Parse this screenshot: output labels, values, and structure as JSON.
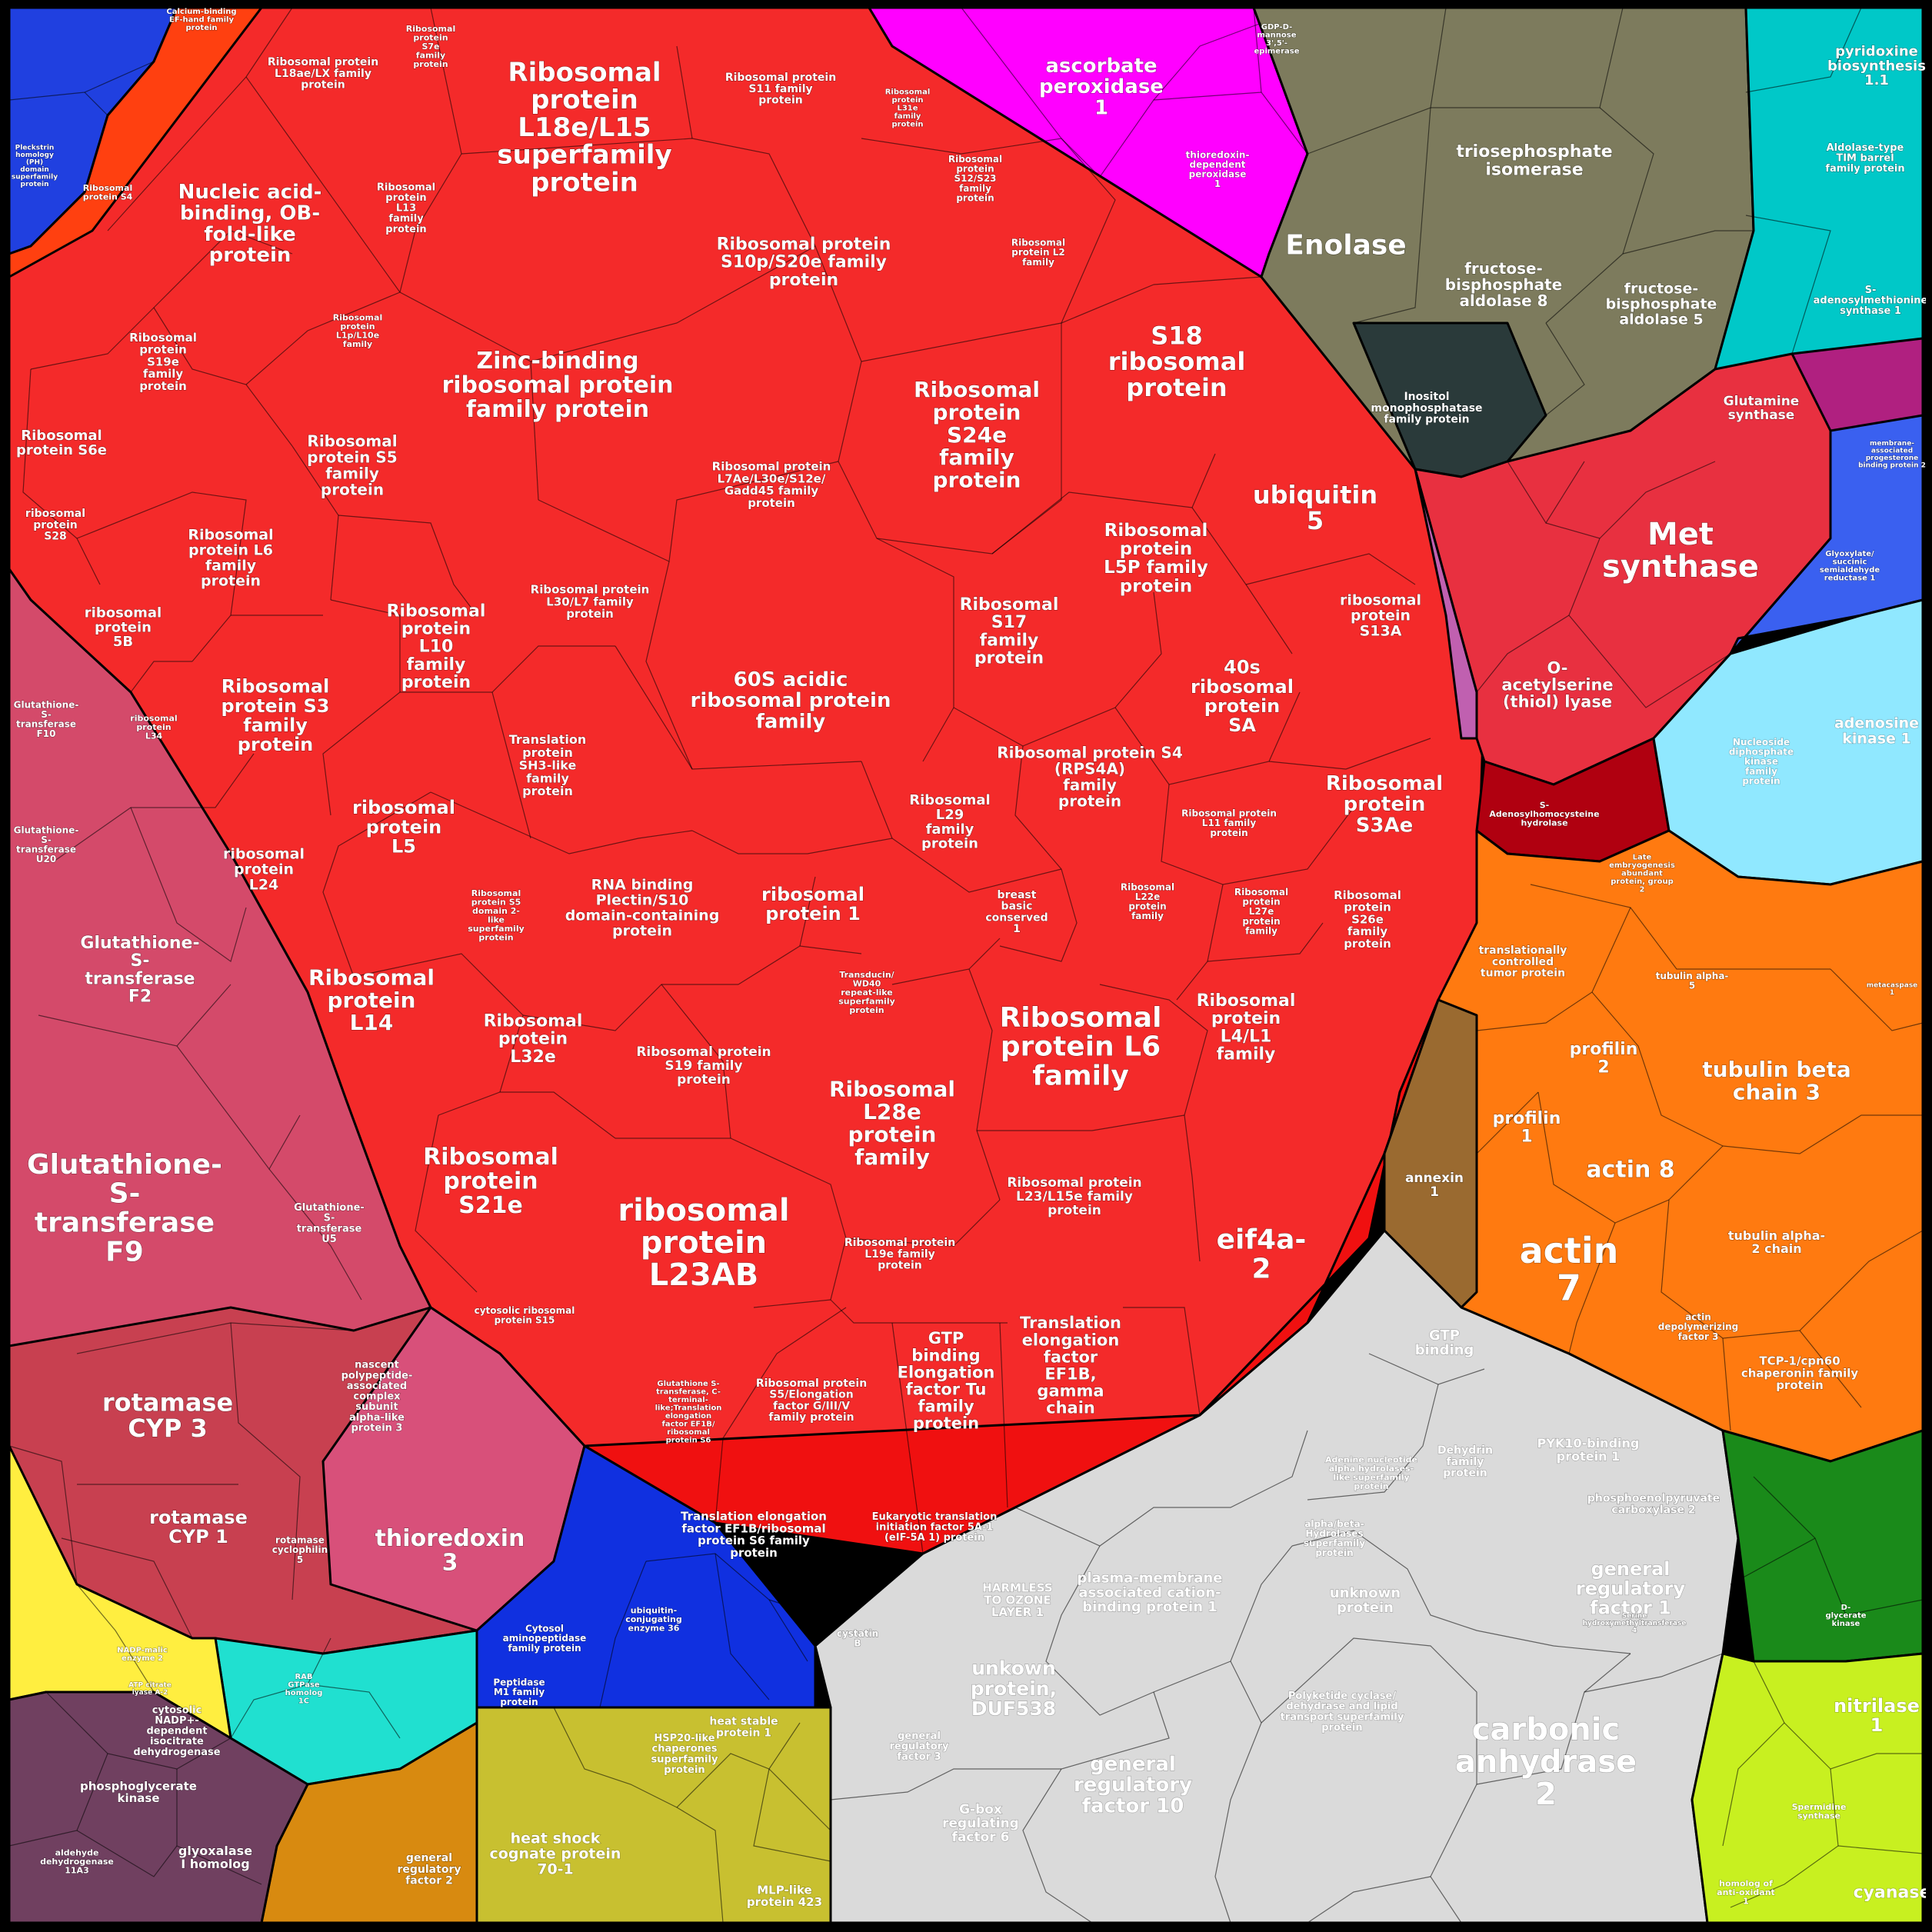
{
  "palette": {
    "ribosome": "#f42a2a",
    "ribosome_dark": "#e81a1a",
    "translation": "#f01010",
    "gst": "#d44a6a",
    "gst_light": "#e0607a",
    "magenta": "#ff00ff",
    "olive": "#7d7b5d",
    "teal": "#00c8c8",
    "met": "#e83040",
    "maroon": "#b00010",
    "orange": "#ff7a10",
    "grey": "#dadada",
    "blue": "#1030e0",
    "khaki": "#c8c030",
    "green": "#1a8a1a",
    "lime": "#c8f020",
    "purple": "#704060",
    "slate": "#2a3a3a",
    "brown": "#9a6a30"
  },
  "regions": [
    {
      "id": "r01",
      "label": "Ribosomal\nprotein\nL18e/L15\nsuperfamily\nprotein",
      "size": 34
    },
    {
      "id": "r02",
      "label": "Nucleic acid-\nbinding, OB-\nfold-like\nprotein",
      "size": 26
    },
    {
      "id": "r03",
      "label": "Ribosomal protein\nL18ae/LX family\nprotein",
      "size": 14
    },
    {
      "id": "r04",
      "label": "Ribosomal\nprotein\nS7e\nfamily\nprotein",
      "size": 11
    },
    {
      "id": "r05",
      "label": "Ribosomal protein\nS11 family\nprotein",
      "size": 14
    },
    {
      "id": "r06",
      "label": "Ribosomal protein\nS10p/S20e family\nprotein",
      "size": 22
    },
    {
      "id": "r07",
      "label": "Zinc-binding\nribosomal protein\nfamily protein",
      "size": 30
    },
    {
      "id": "r08",
      "label": "Ribosomal\nprotein\nS24e\nfamily\nprotein",
      "size": 28
    },
    {
      "id": "r09",
      "label": "S18\nribosomal\nprotein",
      "size": 32
    },
    {
      "id": "r10",
      "label": "ubiquitin\n5",
      "size": 32
    },
    {
      "id": "r11",
      "label": "Ribosomal\nprotein S6e",
      "size": 18
    },
    {
      "id": "r12",
      "label": "Ribosomal\nprotein S5\nfamily\nprotein",
      "size": 20
    },
    {
      "id": "r13",
      "label": "Ribosomal\nprotein L6\nfamily\nprotein",
      "size": 19
    },
    {
      "id": "r14",
      "label": "Ribosomal\nprotein\nL10\nfamily\nprotein",
      "size": 22
    },
    {
      "id": "r15",
      "label": "Ribosomal\nprotein S3\nfamily\nprotein",
      "size": 24
    },
    {
      "id": "r16",
      "label": "60S acidic\nribosomal protein\nfamily",
      "size": 26
    },
    {
      "id": "r17",
      "label": "Ribosomal\nprotein\nL5P family\nprotein",
      "size": 23
    },
    {
      "id": "r18",
      "label": "Ribosomal\nS17\nfamily\nprotein",
      "size": 22
    },
    {
      "id": "r19",
      "label": "40s\nribosomal\nprotein\nSA",
      "size": 24
    },
    {
      "id": "r20",
      "label": "ribosomal\nprotein\nS13A",
      "size": 19
    },
    {
      "id": "r21",
      "label": "Ribosomal\nprotein\nS3Ae",
      "size": 26
    },
    {
      "id": "r22",
      "label": "ribosomal\nprotein\nL5",
      "size": 24
    },
    {
      "id": "r23",
      "label": "Ribosomal protein S4\n(RPS4A)\nfamily\nprotein",
      "size": 20
    },
    {
      "id": "r24",
      "label": "ribosomal\nprotein 1",
      "size": 24
    },
    {
      "id": "r25",
      "label": "RNA binding\nPlectin/S10\ndomain-containing\nprotein",
      "size": 19
    },
    {
      "id": "r26",
      "label": "Ribosomal\nprotein\nL14",
      "size": 28
    },
    {
      "id": "r27",
      "label": "Ribosomal\nprotein L6\nfamily",
      "size": 36
    },
    {
      "id": "r28",
      "label": "Ribosomal\nprotein\nL4/L1\nfamily",
      "size": 22
    },
    {
      "id": "r29",
      "label": "Ribosomal\nprotein\nS21e",
      "size": 30
    },
    {
      "id": "r30",
      "label": "ribosomal\nprotein\nL23AB",
      "size": 40
    },
    {
      "id": "r31",
      "label": "Ribosomal\nL28e\nprotein\nfamily",
      "size": 28
    },
    {
      "id": "r32",
      "label": "eif4a-\n2",
      "size": 36
    },
    {
      "id": "r33",
      "label": "Translation\nelongation\nfactor\nEF1B,\ngamma\nchain",
      "size": 21
    },
    {
      "id": "r34",
      "label": "GTP\nbinding\nElongation\nfactor Tu\nfamily\nprotein",
      "size": 21
    },
    {
      "id": "r35",
      "label": "Glutathione-\nS-\ntransferase\nF9",
      "size": 36
    },
    {
      "id": "r36",
      "label": "Glutathione-\nS-\ntransferase\nF2",
      "size": 22
    },
    {
      "id": "r37",
      "label": "rotamase\nCYP 3",
      "size": 32
    },
    {
      "id": "r38",
      "label": "rotamase\nCYP 1",
      "size": 24
    },
    {
      "id": "r39",
      "label": "thioredoxin\n3",
      "size": 30
    },
    {
      "id": "r40",
      "label": "ascorbate\nperoxidase\n1",
      "size": 26
    },
    {
      "id": "r41",
      "label": "Enolase",
      "size": 36
    },
    {
      "id": "r42",
      "label": "triosephosphate\nisomerase",
      "size": 22
    },
    {
      "id": "r43",
      "label": "fructose-\nbisphosphate\naldolase 8",
      "size": 20
    },
    {
      "id": "r44",
      "label": "fructose-\nbisphosphate\naldolase 5",
      "size": 19
    },
    {
      "id": "r45",
      "label": "Met\nsynthase",
      "size": 40
    },
    {
      "id": "r46",
      "label": "O-\nacetylserine\n(thiol) lyase",
      "size": 21
    },
    {
      "id": "r47",
      "label": "actin\n7",
      "size": 46
    },
    {
      "id": "r48",
      "label": "actin 8",
      "size": 30
    },
    {
      "id": "r49",
      "label": "tubulin beta\nchain 3",
      "size": 28
    },
    {
      "id": "r50",
      "label": "profilin\n2",
      "size": 22
    },
    {
      "id": "r51",
      "label": "profilin\n1",
      "size": 22
    },
    {
      "id": "r52",
      "label": "carbonic\nanhydrase\n2",
      "size": 40
    },
    {
      "id": "r53",
      "label": "general\nregulatory\nfactor 10",
      "size": 26
    },
    {
      "id": "r54",
      "label": "general\nregulatory\nfactor 1",
      "size": 24
    },
    {
      "id": "r55",
      "label": "unkown\nprotein,\nDUF538",
      "size": 25
    },
    {
      "id": "r56",
      "label": "plasma-membrane\nassociated cation-\nbinding protein 1",
      "size": 18
    },
    {
      "id": "r57",
      "label": "heat shock\ncognate protein\n70-1",
      "size": 19
    },
    {
      "id": "r58",
      "label": "nitrilase\n1",
      "size": 24
    },
    {
      "id": "r59",
      "label": "adenosine\nkinase 1",
      "size": 19
    },
    {
      "id": "r60",
      "label": "pyridoxine\nbiosynthesis\n1.1",
      "size": 18
    },
    {
      "id": "r61",
      "label": "Glutamine\nsynthase",
      "size": 17
    },
    {
      "id": "r62",
      "label": "phosphoenolpyruvate\ncarboxylase 2",
      "size": 14
    },
    {
      "id": "r63",
      "label": "cyanase",
      "size": 22
    },
    {
      "id": "r64",
      "label": "phosphoglycerate\nkinase",
      "size": 15
    },
    {
      "id": "r65",
      "label": "glyoxalase\nI homolog",
      "size": 16
    },
    {
      "id": "r66",
      "label": "annexin\n1",
      "size": 17
    },
    {
      "id": "r67",
      "label": "S-\nadenosylmethionine\nsynthase 1",
      "size": 13
    },
    {
      "id": "r68",
      "label": "Inositol\nmonophosphatase\nfamily protein",
      "size": 14
    },
    {
      "id": "r69",
      "label": "Translation elongation\nfactor EF1B/ribosomal\nprotein S6 family\nprotein",
      "size": 15
    },
    {
      "id": "r70",
      "label": "Ribosomal protein\nS19 family\nprotein",
      "size": 17
    },
    {
      "id": "r71",
      "label": "Ribosomal protein\nL23/L15e family\nprotein",
      "size": 17
    },
    {
      "id": "r72",
      "label": "Ribosomal\nprotein\nL32e",
      "size": 22
    },
    {
      "id": "r73",
      "label": "ribosomal\nprotein\nL24",
      "size": 19
    },
    {
      "id": "r74",
      "label": "ribosomal\nprotein\n5B",
      "size": 18
    },
    {
      "id": "r75",
      "label": "Ribosomal\nprotein\nS19e\nfamily\nprotein",
      "size": 15
    },
    {
      "id": "r76",
      "label": "Translation\nprotein\nSH3-like\nfamily\nprotein",
      "size": 16
    },
    {
      "id": "r77",
      "label": "Ribosomal protein\nL7Ae/L30e/S12e/\nGadd45 family\nprotein",
      "size": 15
    },
    {
      "id": "r78",
      "label": "Ribosomal protein\nL30/L7 family\nprotein",
      "size": 15
    },
    {
      "id": "r79",
      "label": "Ribosomal\nL29\nfamily\nprotein",
      "size": 18
    },
    {
      "id": "r80",
      "label": "general\nregulatory\nfactor 2",
      "size": 14
    },
    {
      "id": "r81",
      "label": "HARMLESS\nTO OZONE\nLAYER 1",
      "size": 15
    },
    {
      "id": "r82",
      "label": "G-box\nregulating\nfactor 6",
      "size": 17
    },
    {
      "id": "r83",
      "label": "GTP\nbinding",
      "size": 18
    },
    {
      "id": "r84",
      "label": "unknown\nprotein",
      "size": 18
    },
    {
      "id": "r85",
      "label": "tubulin alpha-\n2 chain",
      "size": 16
    },
    {
      "id": "r86",
      "label": "Ribosomal protein\nL19e family\nprotein",
      "size": 14
    },
    {
      "id": "r87",
      "label": "cytosolic\nNADP+-\ndependent\nisocitrate\ndehydrogenase",
      "size": 13
    },
    {
      "id": "r88",
      "label": "heat stable\nprotein 1",
      "size": 14
    },
    {
      "id": "r89",
      "label": "MLP-like\nprotein 423",
      "size": 15
    },
    {
      "id": "r90",
      "label": "TCP-1/cpn60\nchaperonin family\nprotein",
      "size": 15
    },
    {
      "id": "r91",
      "label": "cytosolic ribosomal\nprotein S15",
      "size": 12
    },
    {
      "id": "r92",
      "label": "Ribosomal\nprotein\nL13\nfamily\nprotein",
      "size": 13
    },
    {
      "id": "r93",
      "label": "Cytosol\naminopeptidase\nfamily protein",
      "size": 12
    },
    {
      "id": "r94",
      "label": "Peptidase\nM1 family\nprotein",
      "size": 12
    },
    {
      "id": "r95",
      "label": "breast\nbasic\nconserved\n1",
      "size": 14
    },
    {
      "id": "r96",
      "label": "Transducin/\nWD40\nrepeat-like\nsuperfamily\nprotein",
      "size": 11
    },
    {
      "id": "r97",
      "label": "Glutathione-\nS-\ntransferase\nU5",
      "size": 13
    },
    {
      "id": "r98",
      "label": "nascent\npolypeptide-\nassociated\ncomplex\nsubunit\nalpha-like\nprotein 3",
      "size": 13
    },
    {
      "id": "r99",
      "label": "S-\nAdenosylhomocysteine\nhydrolase",
      "size": 11
    },
    {
      "id": "r100",
      "label": "translationally\ncontrolled\ntumor protein",
      "size": 14
    },
    {
      "id": "r101",
      "label": "Eukaryotic translation\ninitiation factor 5A-1\n(eIF-5A 1) protein",
      "size": 13
    },
    {
      "id": "r102",
      "label": "Ribosomal protein\nS5/Elongation\nfactor G/III/V\nfamily protein",
      "size": 14
    },
    {
      "id": "r103",
      "label": "Polyketide cyclase/\ndehydrase and lipid\ntransport superfamily\nprotein",
      "size": 13
    },
    {
      "id": "r104",
      "label": "PYK10-binding\nprotein 1",
      "size": 16
    },
    {
      "id": "r105",
      "label": "Dehydrin\nfamily\nprotein",
      "size": 14
    },
    {
      "id": "r106",
      "label": "actin\ndepolymerizing\nfactor 3",
      "size": 12
    },
    {
      "id": "r107",
      "label": "ribosomal\nprotein\nS28",
      "size": 14
    },
    {
      "id": "r108",
      "label": "Glutathione-\nS-\ntransferase\nF10",
      "size": 12
    },
    {
      "id": "r109",
      "label": "Glutathione-\nS-\ntransferase\nU20",
      "size": 12
    },
    {
      "id": "r110",
      "label": "rotamase\ncyclophilin\n5",
      "size": 12
    },
    {
      "id": "r111",
      "label": "general\nregulatory\nfactor 3",
      "size": 13
    },
    {
      "id": "r112",
      "label": "thioredoxin-\ndependent\nperoxidase\n1",
      "size": 12
    },
    {
      "id": "r113",
      "label": "Nucleoside\ndiphosphate\nkinase\nfamily\nprotein",
      "size": 12
    },
    {
      "id": "r114",
      "label": "Aldolase-type\nTIM barrel\nfamily protein",
      "size": 13
    },
    {
      "id": "r115",
      "label": "Adenine nucleotide\nalpha hydrolases-\nlike superfamily\nprotein",
      "size": 11
    },
    {
      "id": "r116",
      "label": "alpha/beta-\nHydrolases\nsuperfamily\nprotein",
      "size": 12
    },
    {
      "id": "r117",
      "label": "Glyoxylate/\nsuccinic\nsemialdehyde\nreductase 1",
      "size": 10
    },
    {
      "id": "r118",
      "label": "Ribosomal\nprotein\nS12/S23\nfamily\nprotein",
      "size": 12
    },
    {
      "id": "r119",
      "label": "Ribosomal\nprotein L2\nfamily",
      "size": 12
    },
    {
      "id": "r120",
      "label": "Ribosomal\nprotein\nL31e\nfamily\nprotein",
      "size": 10
    },
    {
      "id": "r121",
      "label": "Ribosomal\nprotein\nS26e\nfamily\nprotein",
      "size": 15
    },
    {
      "id": "r122",
      "label": "Ribosomal\nprotein\nL27e\nprotein\nfamily",
      "size": 12
    },
    {
      "id": "r123",
      "label": "Ribosomal\nL22e\nprotein\nfamily",
      "size": 12
    },
    {
      "id": "r124",
      "label": "Ribosomal protein\nL11 family\nprotein",
      "size": 12
    },
    {
      "id": "r125",
      "label": "Ribosomal\nprotein\nL1p/L10e\nfamily",
      "size": 11
    },
    {
      "id": "r126",
      "label": "Ribosomal\nprotein S5\ndomain 2-\nlike\nsuperfamily\nprotein",
      "size": 11
    },
    {
      "id": "r127",
      "label": "ribosomal\nprotein\nL34",
      "size": 11
    },
    {
      "id": "r128",
      "label": "heat shock\ncognate\nprotein\n70-1",
      "size": 0
    },
    {
      "id": "r129",
      "label": "HSP20-like\nchaperones\nsuperfamily\nprotein",
      "size": 13
    },
    {
      "id": "r130",
      "label": "ubiquitin-\nconjugating\nenzyme 36",
      "size": 11
    },
    {
      "id": "r131",
      "label": "cystatin\nB",
      "size": 12
    },
    {
      "id": "r132",
      "label": "RAB\nGTPase\nhomolog\n1C",
      "size": 10
    },
    {
      "id": "r133",
      "label": "Glutathione S-\ntransferase, C-\nterminal-\nlike;Translation\nelongation\nfactor EF1B/\nribosomal\nprotein S6",
      "size": 10
    },
    {
      "id": "r134",
      "label": "Glutamine\nsynthase",
      "size": 0
    },
    {
      "id": "r135",
      "label": "Late\nembryogenesis\nabundant\nprotein, group\n2",
      "size": 10
    },
    {
      "id": "r136",
      "label": "tubulin alpha-\n5",
      "size": 12
    },
    {
      "id": "r137",
      "label": "Serine\nhydroxymethyltransferase\n4",
      "size": 9
    },
    {
      "id": "r138",
      "label": "D-\nglycerate\nkinase",
      "size": 10
    },
    {
      "id": "r139",
      "label": "Spermidine\nsynthase",
      "size": 11
    },
    {
      "id": "r140",
      "label": "homolog of\nanti-oxidant\n1",
      "size": 11
    },
    {
      "id": "r141",
      "label": "aldehyde\ndehydrogenase\n11A3",
      "size": 11
    },
    {
      "id": "r142",
      "label": "Ribosomal\nprotein S4",
      "size": 11
    },
    {
      "id": "r143",
      "label": "Pleckstrin\nhomology\n(PH)\ndomain\nsuperfamily\nprotein",
      "size": 9
    },
    {
      "id": "r144",
      "label": "GDP-D-\nmannose\n3',5'-\nepimerase",
      "size": 10
    },
    {
      "id": "r145",
      "label": "Calcium-binding\nEF-hand family\nprotein",
      "size": 10
    },
    {
      "id": "r146",
      "label": "NADP-malic\nenzyme 2",
      "size": 10
    },
    {
      "id": "r147",
      "label": "ATP citrate\nlyase A-2",
      "size": 9
    },
    {
      "id": "r148",
      "label": "membrane-\nassociated\nprogesterone\nbinding protein 2",
      "size": 9
    },
    {
      "id": "r149",
      "label": "metacaspase\n1",
      "size": 9
    }
  ],
  "title": ""
}
